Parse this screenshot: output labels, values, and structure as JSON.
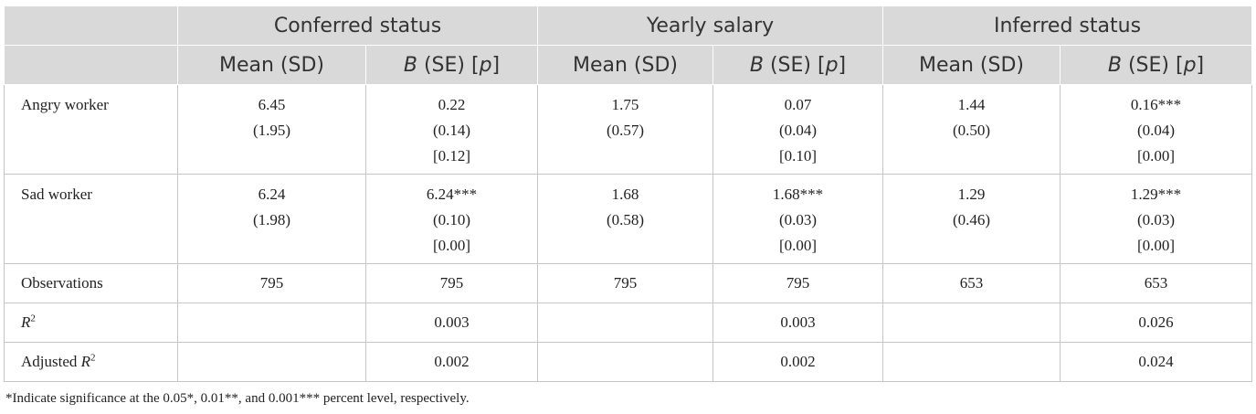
{
  "header": {
    "groups": [
      "Conferred status",
      "Yearly salary",
      "Inferred status"
    ],
    "mean_label": "Mean (SD)",
    "b_label_b": "B",
    "b_label_se": " (SE) [",
    "b_label_p": "p",
    "b_label_close": "]"
  },
  "rows": {
    "angry": {
      "label": "Angry worker",
      "c_mean": "6.45",
      "c_sd": "(1.95)",
      "c_b": "0.22",
      "c_se": "(0.14)",
      "c_p": "[0.12]",
      "y_mean": "1.75",
      "y_sd": "(0.57)",
      "y_b": "0.07",
      "y_se": "(0.04)",
      "y_p": "[0.10]",
      "i_mean": "1.44",
      "i_sd": "(0.50)",
      "i_b": "0.16***",
      "i_se": "(0.04)",
      "i_p": "[0.00]"
    },
    "sad": {
      "label": "Sad worker",
      "c_mean": "6.24",
      "c_sd": "(1.98)",
      "c_b": "6.24***",
      "c_se": "(0.10)",
      "c_p": "[0.00]",
      "y_mean": "1.68",
      "y_sd": "(0.58)",
      "y_b": "1.68***",
      "y_se": "(0.03)",
      "y_p": "[0.00]",
      "i_mean": "1.29",
      "i_sd": "(0.46)",
      "i_b": "1.29***",
      "i_se": "(0.03)",
      "i_p": "[0.00]"
    },
    "observations": {
      "label": "Observations",
      "values": [
        "795",
        "795",
        "795",
        "795",
        "653",
        "653"
      ]
    },
    "r2": {
      "label_main": "R",
      "label_sup": "2",
      "values": [
        "",
        "0.003",
        "",
        "0.003",
        "",
        "0.026"
      ]
    },
    "adj_r2": {
      "label_pre": "Adjusted ",
      "label_main": "R",
      "label_sup": "2",
      "values": [
        "",
        "0.002",
        "",
        "0.002",
        "",
        "0.024"
      ]
    }
  },
  "note": "*Indicate significance at the 0.05*, 0.01**, and 0.001*** percent level, respectively."
}
